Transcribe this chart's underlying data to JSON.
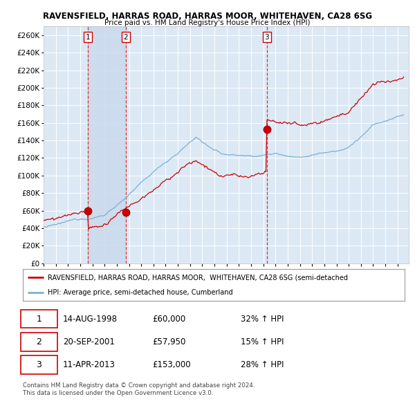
{
  "title1": "RAVENSFIELD, HARRAS ROAD, HARRAS MOOR, WHITEHAVEN, CA28 6SG",
  "title2": "Price paid vs. HM Land Registry's House Price Index (HPI)",
  "bg_color": "#dce9f5",
  "shade_color": "#c5d9ee",
  "grid_color": "#ffffff",
  "red_line_color": "#cc0000",
  "blue_line_color": "#7ab0d4",
  "sale_color": "#cc0000",
  "vline_color": "#dd3333",
  "sale_times": [
    1998.62,
    2001.72,
    2013.28
  ],
  "sale_prices": [
    60000,
    57950,
    153000
  ],
  "sale_labels": [
    "1",
    "2",
    "3"
  ],
  "legend_line1": "RAVENSFIELD, HARRAS ROAD, HARRAS MOOR,  WHITEHAVEN, CA28 6SG (semi-detached",
  "legend_line2": "HPI: Average price, semi-detached house, Cumberland",
  "table_data": [
    [
      "1",
      "14-AUG-1998",
      "£60,000",
      "32% ↑ HPI"
    ],
    [
      "2",
      "20-SEP-2001",
      "£57,950",
      "15% ↑ HPI"
    ],
    [
      "3",
      "11-APR-2013",
      "£153,000",
      "28% ↑ HPI"
    ]
  ],
  "footer1": "Contains HM Land Registry data © Crown copyright and database right 2024.",
  "footer2": "This data is licensed under the Open Government Licence v3.0.",
  "ylim": [
    0,
    270000
  ],
  "yticks": [
    0,
    20000,
    40000,
    60000,
    80000,
    100000,
    120000,
    140000,
    160000,
    180000,
    200000,
    220000,
    240000,
    260000
  ],
  "start_year": 1995,
  "end_year": 2024
}
